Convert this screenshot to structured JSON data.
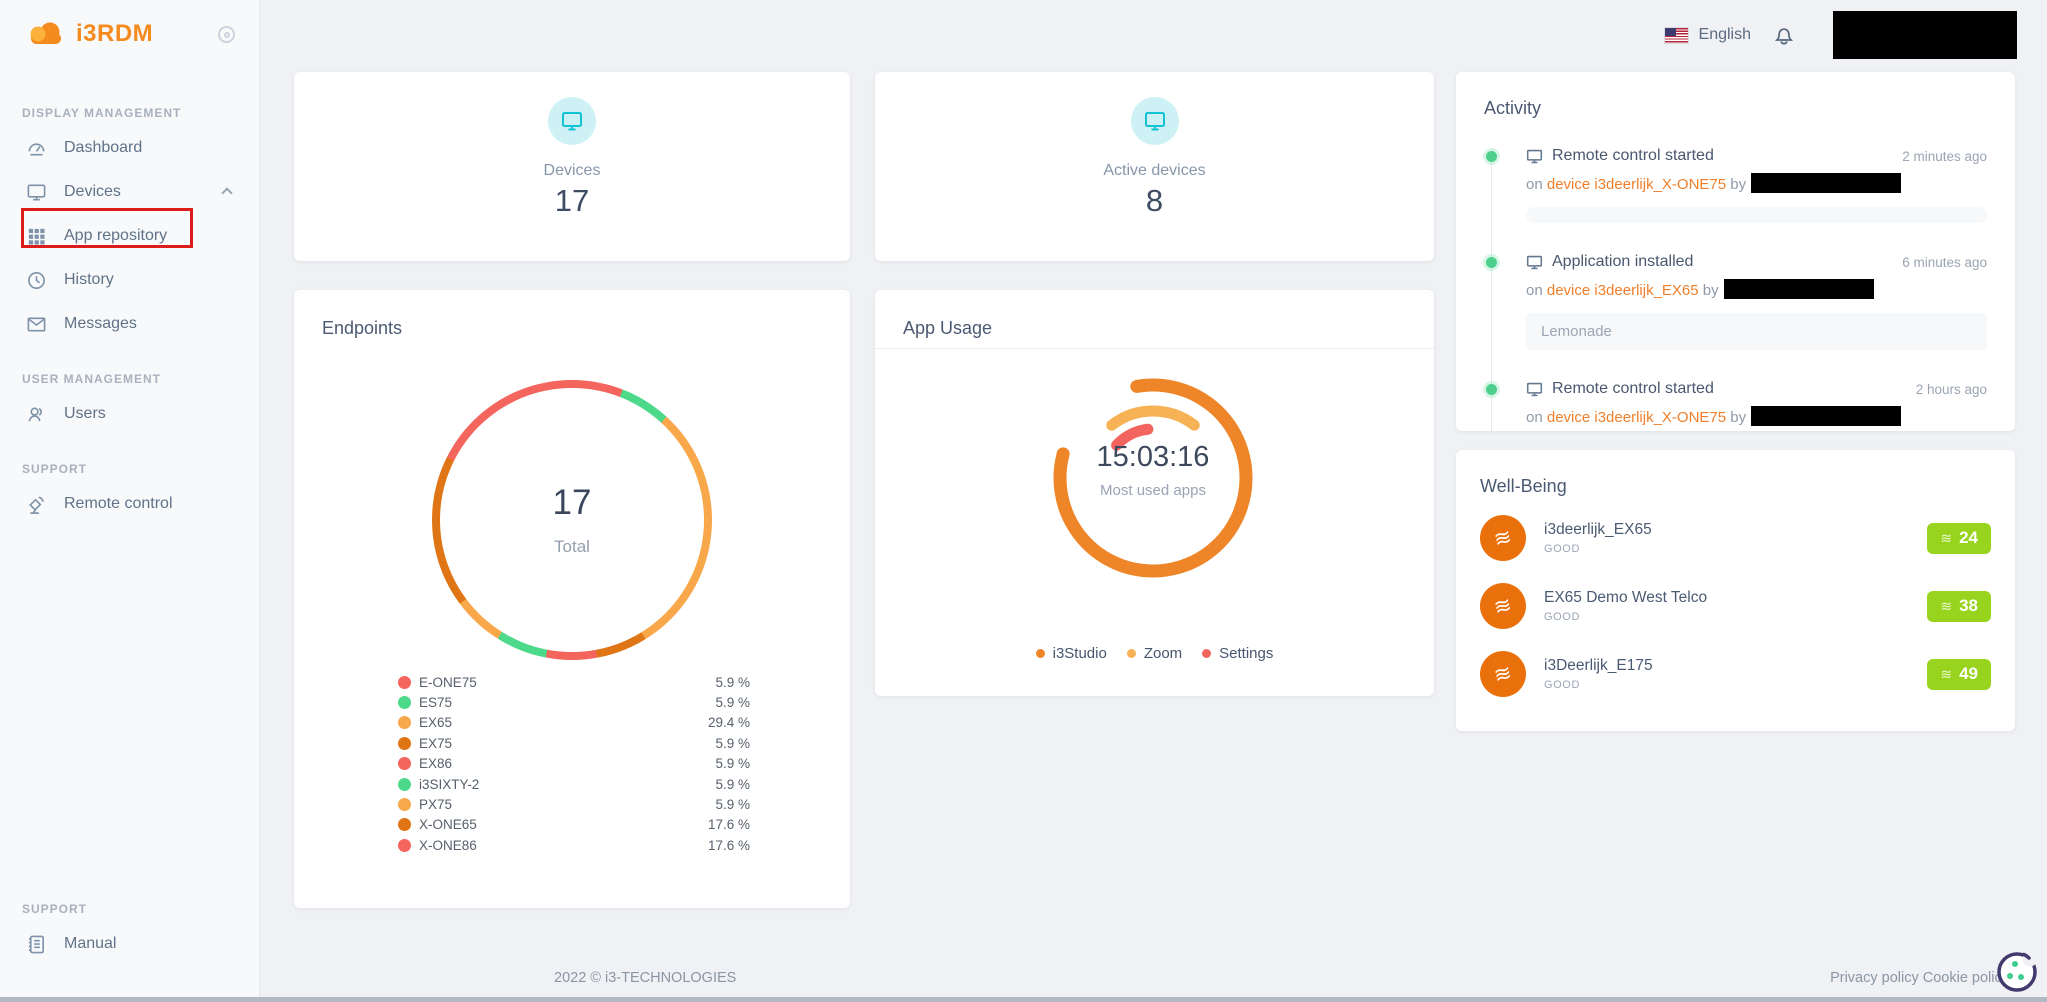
{
  "brand": {
    "name": "i3RDM"
  },
  "header": {
    "language": "English"
  },
  "sidebar": {
    "sections": [
      {
        "title": "DISPLAY MANAGEMENT",
        "items": [
          {
            "label": "Dashboard"
          },
          {
            "label": "Devices"
          },
          {
            "label": "App repository"
          },
          {
            "label": "History"
          },
          {
            "label": "Messages"
          }
        ]
      },
      {
        "title": "USER MANAGEMENT",
        "items": [
          {
            "label": "Users"
          }
        ]
      },
      {
        "title": "SUPPORT",
        "items": [
          {
            "label": "Remote control"
          }
        ]
      },
      {
        "title": "SUPPORT",
        "items": [
          {
            "label": "Manual"
          }
        ]
      }
    ]
  },
  "stats": {
    "devices": {
      "label": "Devices",
      "value": "17"
    },
    "active_devices": {
      "label": "Active devices",
      "value": "8"
    }
  },
  "chart_data": [
    {
      "type": "donut",
      "title": "Endpoints",
      "center_value": "17",
      "center_label": "Total",
      "total": 17,
      "categories": [
        "E-ONE75",
        "ES75",
        "EX65",
        "EX75",
        "EX86",
        "i3SIXTY-2",
        "PX75",
        "X-ONE65",
        "X-ONE86"
      ],
      "values": [
        5.9,
        5.9,
        29.4,
        5.9,
        5.9,
        5.9,
        5.9,
        17.6,
        17.6
      ],
      "value_labels": [
        "5.9 %",
        "5.9 %",
        "29.4 %",
        "5.9 %",
        "5.9 %",
        "5.9 %",
        "5.9 %",
        "17.6 %",
        "17.6 %"
      ],
      "colors": [
        "#f4655e",
        "#4cd98a",
        "#f8a84b",
        "#df7514",
        "#f4655e",
        "#4cd98a",
        "#f8a84b",
        "#df7514",
        "#f4655e"
      ],
      "legend_position": "bottom"
    },
    {
      "type": "radial-arcs",
      "title": "App Usage",
      "center_value": "15:03:16",
      "center_label": "Most used apps",
      "series": [
        {
          "name": "i3Studio",
          "color": "#ee8528",
          "start_deg": -10,
          "sweep_deg": 295,
          "radius": 93,
          "stroke": 13
        },
        {
          "name": "Zoom",
          "color": "#f6b254",
          "start_deg": -38,
          "sweep_deg": 76,
          "radius": 67,
          "stroke": 11
        },
        {
          "name": "Settings",
          "color": "#f4645e",
          "start_deg": -48,
          "sweep_deg": 42,
          "radius": 49,
          "stroke": 11
        }
      ],
      "legend_position": "bottom"
    }
  ],
  "activity": {
    "title": "Activity",
    "entries": [
      {
        "title": "Remote control started",
        "time": "2 minutes ago",
        "prefix": "on",
        "link": "device i3deerlijk_X-ONE75",
        "suffix": "by",
        "detail": ""
      },
      {
        "title": "Application installed",
        "time": "6 minutes ago",
        "prefix": "on",
        "link": "device i3deerlijk_EX65",
        "suffix": "by",
        "detail": "Lemonade"
      },
      {
        "title": "Remote control started",
        "time": "2 hours ago",
        "prefix": "on",
        "link": "device i3deerlijk_X-ONE75",
        "suffix": "by"
      }
    ]
  },
  "wellbeing": {
    "title": "Well-Being",
    "items": [
      {
        "name": "i3deerlijk_EX65",
        "status": "GOOD",
        "score": "24"
      },
      {
        "name": "EX65 Demo West Telco",
        "status": "GOOD",
        "score": "38"
      },
      {
        "name": "i3Deerlijk_E175",
        "status": "GOOD",
        "score": "49"
      }
    ]
  },
  "footer": {
    "copyright": "2022 © i3-TECHNOLOGIES",
    "privacy_label": "Privacy policy",
    "cookie_label": "Cookie policy"
  },
  "colors": {
    "accent_orange": "#f58a1f",
    "link_orange": "#ef7f2a",
    "badge_green": "#98d41d",
    "avatar_orange": "#ea700c",
    "activity_dot_green": "#4cd08c",
    "stat_icon_teal": "#12c2d5",
    "annotation_red": "#dd1c1c"
  }
}
